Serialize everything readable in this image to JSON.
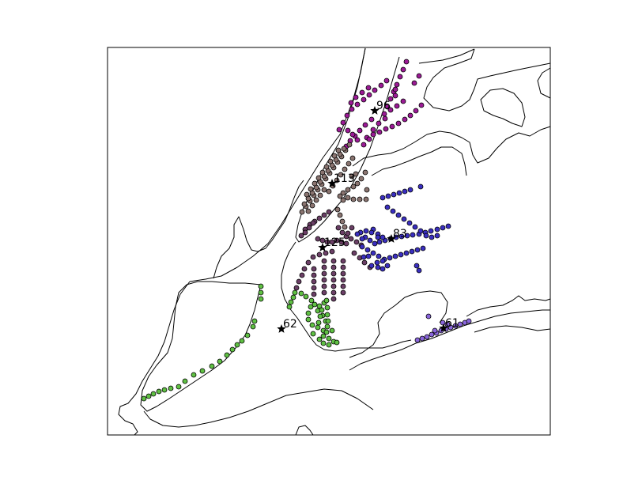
{
  "chart_data": {
    "type": "scatter",
    "title": "",
    "xlabel": "",
    "ylabel": "",
    "grid": false,
    "colors": {
      "frame": "#000000",
      "coastline": "#000000",
      "centroid": "#000000"
    },
    "clusters": [
      {
        "label": "96",
        "color": "#9b1a95",
        "center": [
          474,
          140
        ],
        "points": [
          [
            514,
            78
          ],
          [
            510,
            88
          ],
          [
            506,
            97
          ],
          [
            502,
            107
          ],
          [
            498,
            116
          ],
          [
            494,
            125
          ],
          [
            490,
            135
          ],
          [
            530,
            96
          ],
          [
            524,
            105
          ],
          [
            489,
            102
          ],
          [
            482,
            108
          ],
          [
            474,
            114
          ],
          [
            467,
            120
          ],
          [
            460,
            126
          ],
          [
            452,
            132
          ],
          [
            445,
            138
          ],
          [
            439,
            146
          ],
          [
            434,
            155
          ],
          [
            429,
            164
          ],
          [
            500,
            113
          ],
          [
            500,
            121
          ],
          [
            510,
            128
          ],
          [
            502,
            134
          ],
          [
            494,
            139
          ],
          [
            486,
            144
          ],
          [
            533,
            133
          ],
          [
            526,
            140
          ],
          [
            519,
            146
          ],
          [
            512,
            151
          ],
          [
            504,
            156
          ],
          [
            496,
            160
          ],
          [
            488,
            163
          ],
          [
            480,
            167
          ],
          [
            472,
            170
          ],
          [
            464,
            174
          ],
          [
            470,
            151
          ],
          [
            462,
            158
          ],
          [
            455,
            165
          ],
          [
            449,
            172
          ],
          [
            443,
            178
          ],
          [
            438,
            185
          ],
          [
            487,
            150
          ],
          [
            479,
            156
          ],
          [
            472,
            164
          ],
          [
            467,
            176
          ],
          [
            460,
            183
          ],
          [
            452,
            177
          ],
          [
            446,
            170
          ],
          [
            440,
            165
          ],
          [
            466,
            111
          ],
          [
            458,
            117
          ],
          [
            450,
            123
          ],
          [
            444,
            130
          ]
        ]
      },
      {
        "label": "113",
        "color": "#8a7470",
        "center": [
          420,
          232
        ],
        "points": [
          [
            442,
            183
          ],
          [
            437,
            190
          ],
          [
            432,
            198
          ],
          [
            427,
            205
          ],
          [
            422,
            212
          ],
          [
            417,
            219
          ],
          [
            412,
            226
          ],
          [
            407,
            233
          ],
          [
            402,
            240
          ],
          [
            397,
            247
          ],
          [
            392,
            254
          ],
          [
            387,
            261
          ],
          [
            382,
            268
          ],
          [
            435,
            188
          ],
          [
            430,
            195
          ],
          [
            425,
            202
          ],
          [
            420,
            209
          ],
          [
            415,
            216
          ],
          [
            410,
            223
          ],
          [
            405,
            230
          ],
          [
            400,
            237
          ],
          [
            395,
            244
          ],
          [
            390,
            251
          ],
          [
            385,
            258
          ],
          [
            428,
            190
          ],
          [
            423,
            197
          ],
          [
            418,
            204
          ],
          [
            413,
            211
          ],
          [
            408,
            218
          ],
          [
            403,
            225
          ],
          [
            398,
            232
          ],
          [
            393,
            239
          ],
          [
            388,
            246
          ],
          [
            446,
            200
          ],
          [
            441,
            207
          ],
          [
            436,
            214
          ],
          [
            431,
            221
          ],
          [
            426,
            228
          ],
          [
            421,
            235
          ],
          [
            416,
            242
          ],
          [
            462,
            218
          ],
          [
            457,
            226
          ],
          [
            452,
            232
          ],
          [
            447,
            236
          ],
          [
            440,
            240
          ],
          [
            434,
            244
          ],
          [
            430,
            248
          ],
          [
            434,
            253
          ],
          [
            440,
            250
          ],
          [
            447,
            252
          ],
          [
            455,
            252
          ],
          [
            463,
            252
          ],
          [
            464,
            240
          ],
          [
            445,
            223
          ],
          [
            450,
            220
          ],
          [
            410,
            240
          ],
          [
            405,
            247
          ],
          [
            400,
            253
          ],
          [
            395,
            260
          ],
          [
            390,
            267
          ],
          [
            427,
            265
          ],
          [
            430,
            272
          ],
          [
            433,
            280
          ],
          [
            436,
            287
          ]
        ]
      },
      {
        "label": "125",
        "color": "#6b3f66",
        "center": [
          408,
          313
        ],
        "points": [
          [
            381,
            298
          ],
          [
            386,
            290
          ],
          [
            392,
            284
          ],
          [
            398,
            280
          ],
          [
            404,
            276
          ],
          [
            410,
            272
          ],
          [
            416,
            268
          ],
          [
            386,
            294
          ],
          [
            391,
            288
          ],
          [
            396,
            282
          ],
          [
            402,
            302
          ],
          [
            408,
            304
          ],
          [
            414,
            306
          ],
          [
            420,
            306
          ],
          [
            426,
            304
          ],
          [
            432,
            306
          ],
          [
            438,
            308
          ],
          [
            420,
            318
          ],
          [
            412,
            320
          ],
          [
            404,
            322
          ],
          [
            396,
            325
          ],
          [
            390,
            332
          ],
          [
            385,
            340
          ],
          [
            382,
            348
          ],
          [
            378,
            356
          ],
          [
            375,
            364
          ],
          [
            410,
            330
          ],
          [
            410,
            338
          ],
          [
            410,
            346
          ],
          [
            410,
            354
          ],
          [
            410,
            362
          ],
          [
            410,
            370
          ],
          [
            422,
            330
          ],
          [
            422,
            338
          ],
          [
            422,
            346
          ],
          [
            422,
            354
          ],
          [
            422,
            362
          ],
          [
            422,
            370
          ],
          [
            422,
            378
          ],
          [
            434,
            330
          ],
          [
            434,
            338
          ],
          [
            434,
            346
          ],
          [
            434,
            354
          ],
          [
            434,
            362
          ],
          [
            434,
            370
          ],
          [
            397,
            340
          ],
          [
            397,
            348
          ],
          [
            397,
            356
          ],
          [
            397,
            364
          ],
          [
            397,
            372
          ],
          [
            428,
            288
          ],
          [
            433,
            294
          ],
          [
            438,
            299
          ],
          [
            444,
            302
          ],
          [
            451,
            306
          ],
          [
            457,
            310
          ],
          [
            448,
            320
          ],
          [
            455,
            326
          ],
          [
            461,
            332
          ],
          [
            468,
            338
          ],
          [
            445,
            288
          ],
          [
            440,
            295
          ]
        ]
      },
      {
        "label": "83",
        "color": "#3a2fc0",
        "center": [
          495,
          302
        ],
        "points": [
          [
            456,
            294
          ],
          [
            462,
            300
          ],
          [
            468,
            304
          ],
          [
            474,
            308
          ],
          [
            480,
            306
          ],
          [
            487,
            304
          ],
          [
            494,
            302
          ],
          [
            501,
            300
          ],
          [
            508,
            299
          ],
          [
            515,
            298
          ],
          [
            522,
            297
          ],
          [
            530,
            296
          ],
          [
            538,
            294
          ],
          [
            545,
            292
          ],
          [
            553,
            290
          ],
          [
            560,
            288
          ],
          [
            567,
            286
          ],
          [
            472,
            290
          ],
          [
            478,
            296
          ],
          [
            484,
            300
          ],
          [
            490,
            262
          ],
          [
            497,
            267
          ],
          [
            504,
            272
          ],
          [
            511,
            277
          ],
          [
            518,
            282
          ],
          [
            525,
            287
          ],
          [
            532,
            292
          ],
          [
            539,
            298
          ],
          [
            546,
            300
          ],
          [
            553,
            298
          ],
          [
            484,
            250
          ],
          [
            491,
            248
          ],
          [
            498,
            246
          ],
          [
            505,
            244
          ],
          [
            512,
            242
          ],
          [
            519,
            240
          ],
          [
            532,
            236
          ],
          [
            458,
            312
          ],
          [
            465,
            316
          ],
          [
            472,
            320
          ],
          [
            479,
            324
          ],
          [
            486,
            328
          ],
          [
            493,
            326
          ],
          [
            500,
            324
          ],
          [
            507,
            322
          ],
          [
            514,
            320
          ],
          [
            521,
            318
          ],
          [
            528,
            316
          ],
          [
            535,
            314
          ],
          [
            470,
            336
          ],
          [
            477,
            332
          ],
          [
            484,
            330
          ],
          [
            490,
            336
          ],
          [
            484,
            340
          ],
          [
            478,
            338
          ],
          [
            530,
            342
          ],
          [
            527,
            336
          ],
          [
            466,
            324
          ],
          [
            460,
            325
          ],
          [
            458,
            302
          ],
          [
            452,
            296
          ],
          [
            463,
            292
          ],
          [
            470,
            294
          ],
          [
            478,
            300
          ]
        ]
      },
      {
        "label": "62",
        "color": "#5fc043",
        "center": [
          356,
          416
        ],
        "points": [
          [
            182,
            504
          ],
          [
            188,
            501
          ],
          [
            194,
            498
          ],
          [
            201,
            495
          ],
          [
            208,
            493
          ],
          [
            216,
            491
          ],
          [
            226,
            489
          ],
          [
            234,
            482
          ],
          [
            245,
            474
          ],
          [
            256,
            469
          ],
          [
            268,
            463
          ],
          [
            278,
            457
          ],
          [
            287,
            449
          ],
          [
            294,
            442
          ],
          [
            300,
            436
          ],
          [
            306,
            431
          ],
          [
            313,
            424
          ],
          [
            320,
            413
          ],
          [
            322,
            406
          ],
          [
            330,
            362
          ],
          [
            330,
            370
          ],
          [
            330,
            378
          ],
          [
            366,
            388
          ],
          [
            368,
            382
          ],
          [
            371,
            376
          ],
          [
            373,
            370
          ],
          [
            381,
            371
          ],
          [
            387,
            375
          ],
          [
            394,
            380
          ],
          [
            393,
            388
          ],
          [
            390,
            396
          ],
          [
            390,
            404
          ],
          [
            395,
            411
          ],
          [
            402,
            414
          ],
          [
            409,
            418
          ],
          [
            414,
            413
          ],
          [
            412,
            406
          ],
          [
            408,
            399
          ],
          [
            402,
            393
          ],
          [
            398,
            385
          ],
          [
            404,
            387
          ],
          [
            410,
            383
          ],
          [
            414,
            389
          ],
          [
            414,
            398
          ],
          [
            415,
            406
          ],
          [
            409,
            425
          ],
          [
            416,
            428
          ],
          [
            422,
            432
          ],
          [
            426,
            433
          ],
          [
            416,
            436
          ],
          [
            409,
            434
          ],
          [
            404,
            429
          ],
          [
            396,
            422
          ],
          [
            407,
            392
          ],
          [
            405,
            400
          ],
          [
            403,
            408
          ],
          [
            413,
            380
          ],
          [
            413,
            420
          ],
          [
            420,
            418
          ]
        ]
      },
      {
        "label": "61",
        "color": "#8a66dc",
        "center": [
          561,
          415
        ],
        "points": [
          [
            528,
            430
          ],
          [
            534,
            428
          ],
          [
            540,
            426
          ],
          [
            546,
            423
          ],
          [
            552,
            421
          ],
          [
            558,
            418
          ],
          [
            564,
            416
          ],
          [
            570,
            414
          ],
          [
            576,
            412
          ],
          [
            582,
            410
          ],
          [
            588,
            408
          ],
          [
            593,
            406
          ],
          [
            542,
            400
          ],
          [
            560,
            408
          ],
          [
            566,
            410
          ],
          [
            550,
            418
          ]
        ]
      }
    ]
  }
}
